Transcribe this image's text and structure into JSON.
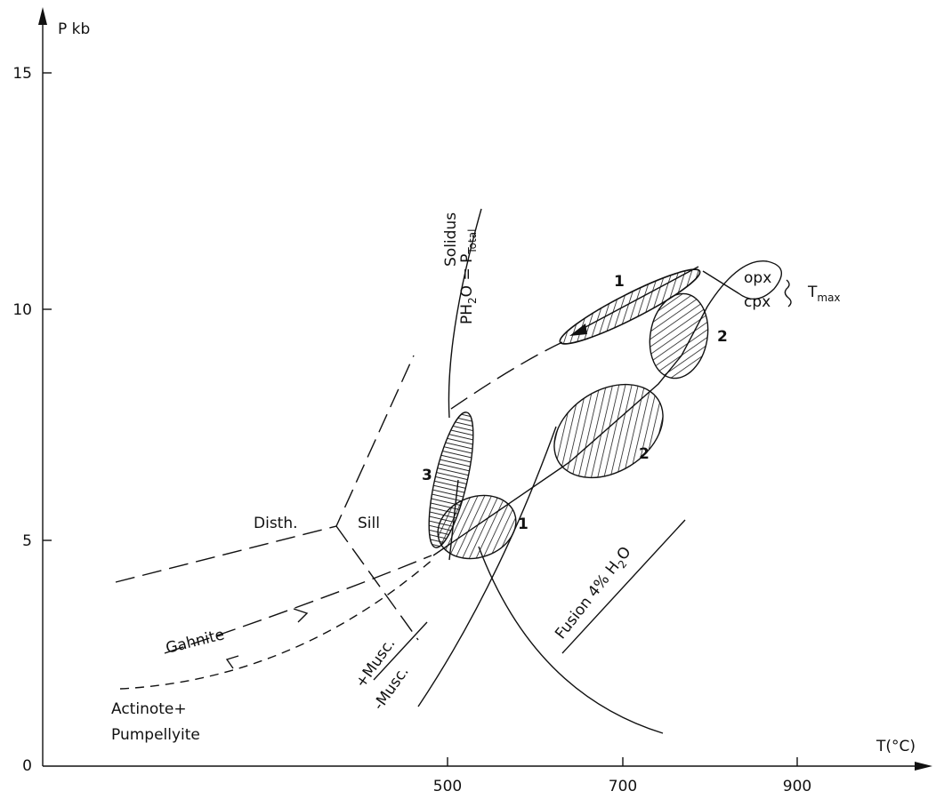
{
  "axes": {
    "y_label": "P kb",
    "x_label": "T(°C)",
    "yticks": [
      "0",
      "5",
      "10",
      "15"
    ],
    "xticks": [
      "500",
      "700",
      "900"
    ]
  },
  "labels": {
    "solidus": "Solidus",
    "ph2o": {
      "p": "PH",
      "sub": "2",
      "mid": "O = P",
      "sub2": "Total"
    },
    "opx": "opx",
    "cpx": "cpx",
    "tmax": {
      "t": "T",
      "sub": "max"
    },
    "zones": [
      "1",
      "2",
      "2",
      "3",
      "1"
    ],
    "disth": "Disth.",
    "sill": "Sill",
    "gahnite": "Gahnite",
    "plus_musc": "+Musc.",
    "minus_musc": "-Musc.",
    "actinote": "Actinote+",
    "pumpellyite": "Pumpellyite",
    "fusion": {
      "main": "Fusion 4% H",
      "sub": "2",
      "rest": "O"
    }
  }
}
